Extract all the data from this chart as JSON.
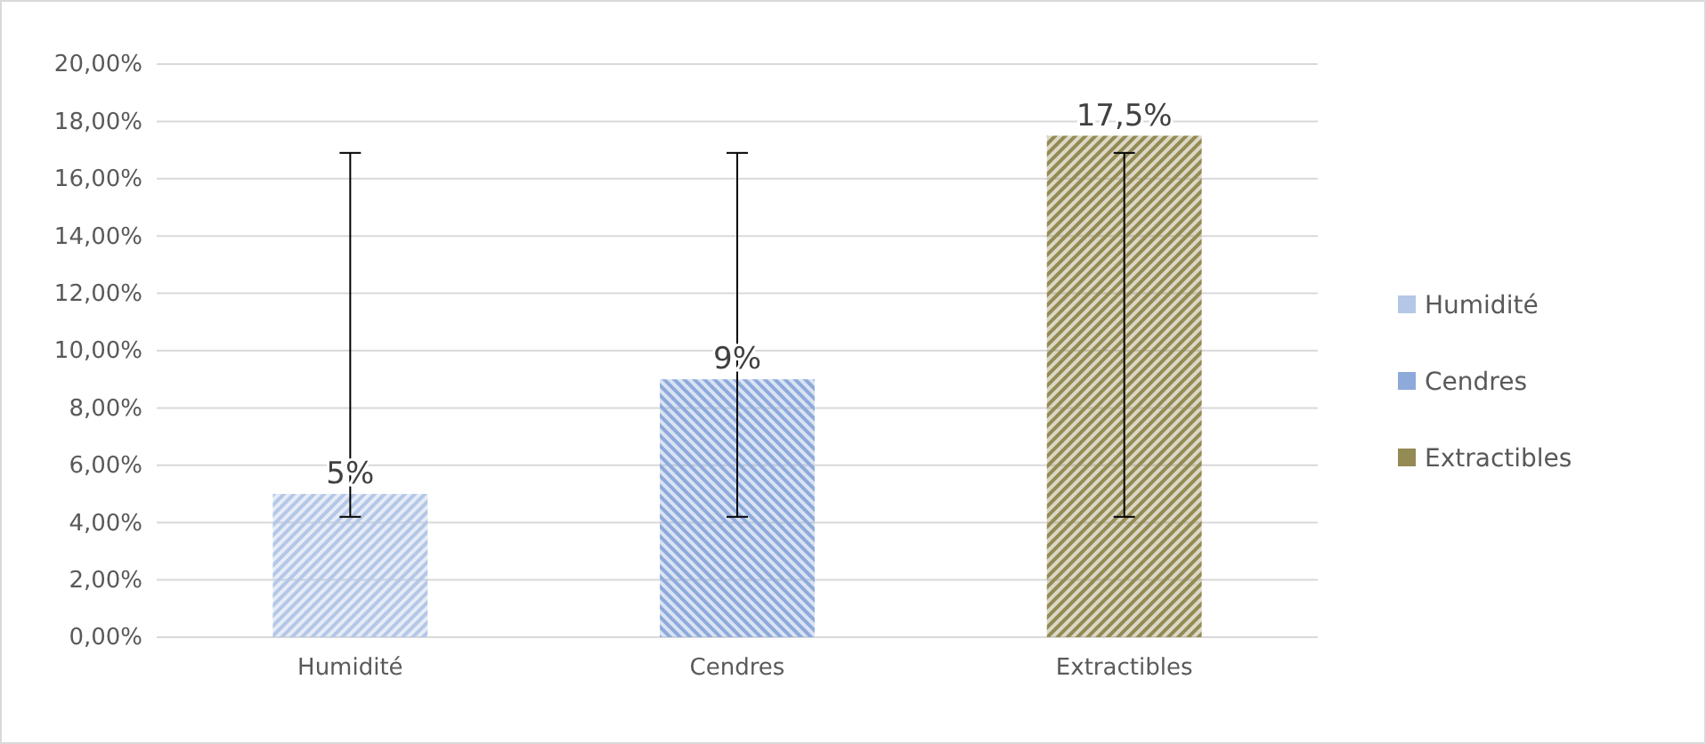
{
  "chart_data": {
    "type": "bar",
    "categories": [
      "Humidité",
      "Cendres",
      "Extractibles"
    ],
    "series": [
      {
        "name": "Humidité",
        "color": "#b4c7e7",
        "values": [
          5,
          null,
          null
        ],
        "value_labels": [
          "5%",
          null,
          null
        ],
        "errors": [
          [
            4.2,
            16.9
          ],
          null,
          null
        ]
      },
      {
        "name": "Cendres",
        "color": "#8eaadb",
        "values": [
          null,
          9,
          null
        ],
        "value_labels": [
          null,
          "9%",
          null
        ],
        "errors": [
          null,
          [
            4.2,
            16.9
          ],
          null
        ]
      },
      {
        "name": "Extractibles",
        "color": "#948a54",
        "values": [
          null,
          null,
          17.5
        ],
        "value_labels": [
          null,
          null,
          "17,5%"
        ],
        "errors": [
          null,
          null,
          [
            4.2,
            16.9
          ]
        ]
      }
    ],
    "ylim": [
      0,
      20
    ],
    "yticks": [
      {
        "value": 0,
        "label": "0,00%"
      },
      {
        "value": 2,
        "label": "2,00%"
      },
      {
        "value": 4,
        "label": "4,00%"
      },
      {
        "value": 6,
        "label": "6,00%"
      },
      {
        "value": 8,
        "label": "8,00%"
      },
      {
        "value": 10,
        "label": "10,00%"
      },
      {
        "value": 12,
        "label": "12,00%"
      },
      {
        "value": 14,
        "label": "14,00%"
      },
      {
        "value": 16,
        "label": "16,00%"
      },
      {
        "value": 18,
        "label": "18,00%"
      },
      {
        "value": 20,
        "label": "20,00%"
      }
    ],
    "grid": "y",
    "legend": "right"
  }
}
